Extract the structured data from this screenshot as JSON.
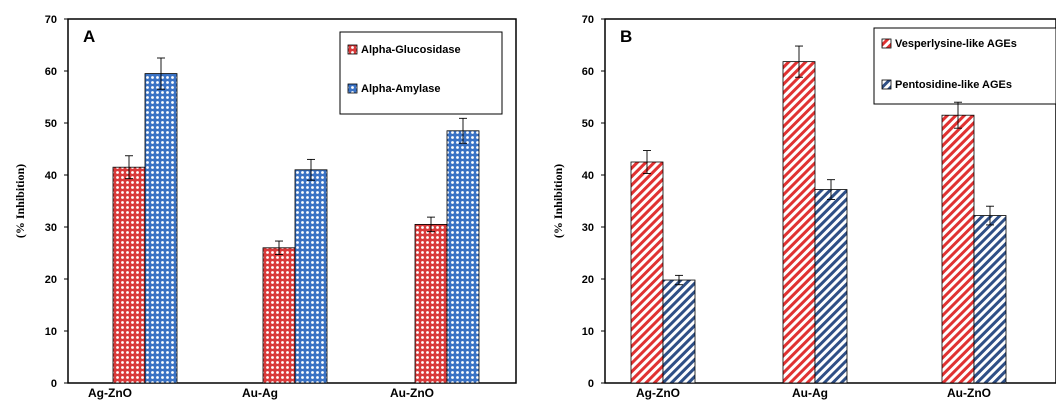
{
  "chart_data": [
    {
      "type": "bar",
      "panel_label": "A",
      "ylabel": "(% Inhibition)",
      "ylim": [
        0,
        70
      ],
      "yticks": [
        0,
        10,
        20,
        30,
        40,
        50,
        60,
        70
      ],
      "categories": [
        "Ag-ZnO",
        "Au-Ag",
        "Au-ZnO"
      ],
      "legend_position": "top-right",
      "series": [
        {
          "name": "Alpha-Glucosidase",
          "values": [
            41.5,
            26.0,
            30.5
          ],
          "errors": [
            2.2,
            1.3,
            1.4
          ],
          "color": "#d93a3a",
          "pattern": "dots"
        },
        {
          "name": "Alpha-Amylase",
          "values": [
            59.5,
            41.0,
            48.5
          ],
          "errors": [
            3.0,
            2.0,
            2.4
          ],
          "color": "#3a72c4",
          "pattern": "dots"
        }
      ]
    },
    {
      "type": "bar",
      "panel_label": "B",
      "ylabel": "(% Inhibition)",
      "ylim": [
        0,
        70
      ],
      "yticks": [
        0,
        10,
        20,
        30,
        40,
        50,
        60,
        70
      ],
      "categories": [
        "Ag-ZnO",
        "Au-Ag",
        "Au-ZnO"
      ],
      "legend_position": "top-right",
      "series": [
        {
          "name": "Vesperlysine-like AGEs",
          "values": [
            42.5,
            61.8,
            51.5
          ],
          "errors": [
            2.2,
            3.0,
            2.5
          ],
          "color": "#e03232",
          "pattern": "diagonal"
        },
        {
          "name": "Pentosidine-like AGEs",
          "values": [
            19.8,
            37.2,
            32.2
          ],
          "errors": [
            0.9,
            1.9,
            1.8
          ],
          "color": "#2f4f86",
          "pattern": "diagonal"
        }
      ]
    }
  ]
}
